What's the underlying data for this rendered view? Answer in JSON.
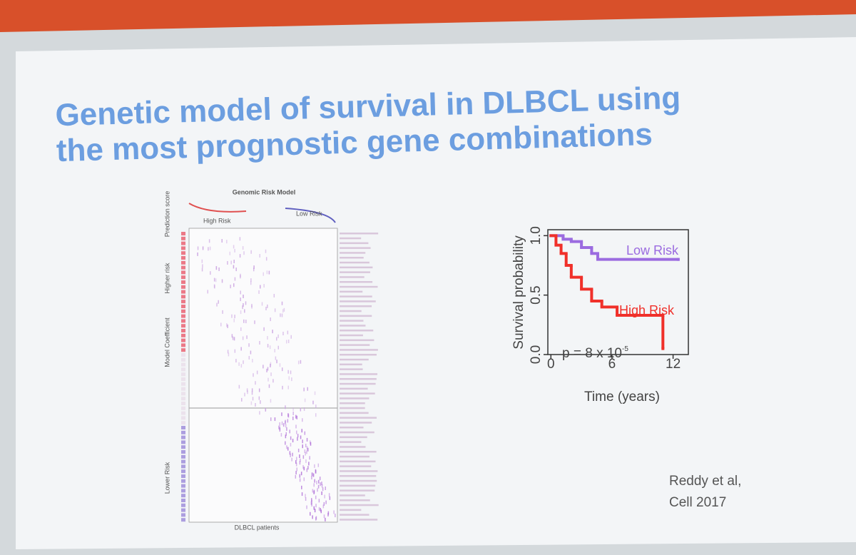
{
  "slide": {
    "title_lines": [
      "Genetic model of survival in DLBCL using",
      "the most prognostic gene combinations"
    ],
    "figure": {
      "title": "Genomic Risk Model",
      "high_label": "High Risk",
      "low_label": "Low Risk",
      "x_label": "DLBCL patients",
      "side_labels": [
        "Prediction score",
        "Higher risk",
        "Model Coefficient",
        "Lower Risk"
      ]
    },
    "citation": [
      "Reddy et al,",
      "Cell 2017"
    ]
  },
  "chart_data": {
    "type": "line",
    "step": true,
    "xlabel": "Time (years)",
    "ylabel": "Survival probability",
    "xlim": [
      -0.3,
      13.5
    ],
    "ylim": [
      0,
      1.05
    ],
    "xticks": [
      0,
      6,
      12
    ],
    "yticks": [
      {
        "value": 0,
        "label": "0.0"
      },
      {
        "value": 0.5,
        "label": "0.5"
      },
      {
        "value": 1,
        "label": "1.0"
      }
    ],
    "annotation": {
      "base": "p = 8 x 10",
      "exponent": "-5"
    },
    "series": [
      {
        "name": "Low Risk",
        "color": "#9b6be0",
        "x": [
          0,
          1.2,
          2,
          3,
          4,
          4.6,
          12.5
        ],
        "values": [
          1,
          0.97,
          0.95,
          0.9,
          0.85,
          0.8,
          0.8
        ]
      },
      {
        "name": "High Risk",
        "color": "#f0302a",
        "x": [
          0,
          0.5,
          1,
          1.5,
          2,
          3,
          4,
          5,
          6.5,
          11
        ],
        "values": [
          1,
          0.92,
          0.85,
          0.75,
          0.65,
          0.55,
          0.45,
          0.4,
          0.33,
          0.05
        ]
      }
    ]
  }
}
